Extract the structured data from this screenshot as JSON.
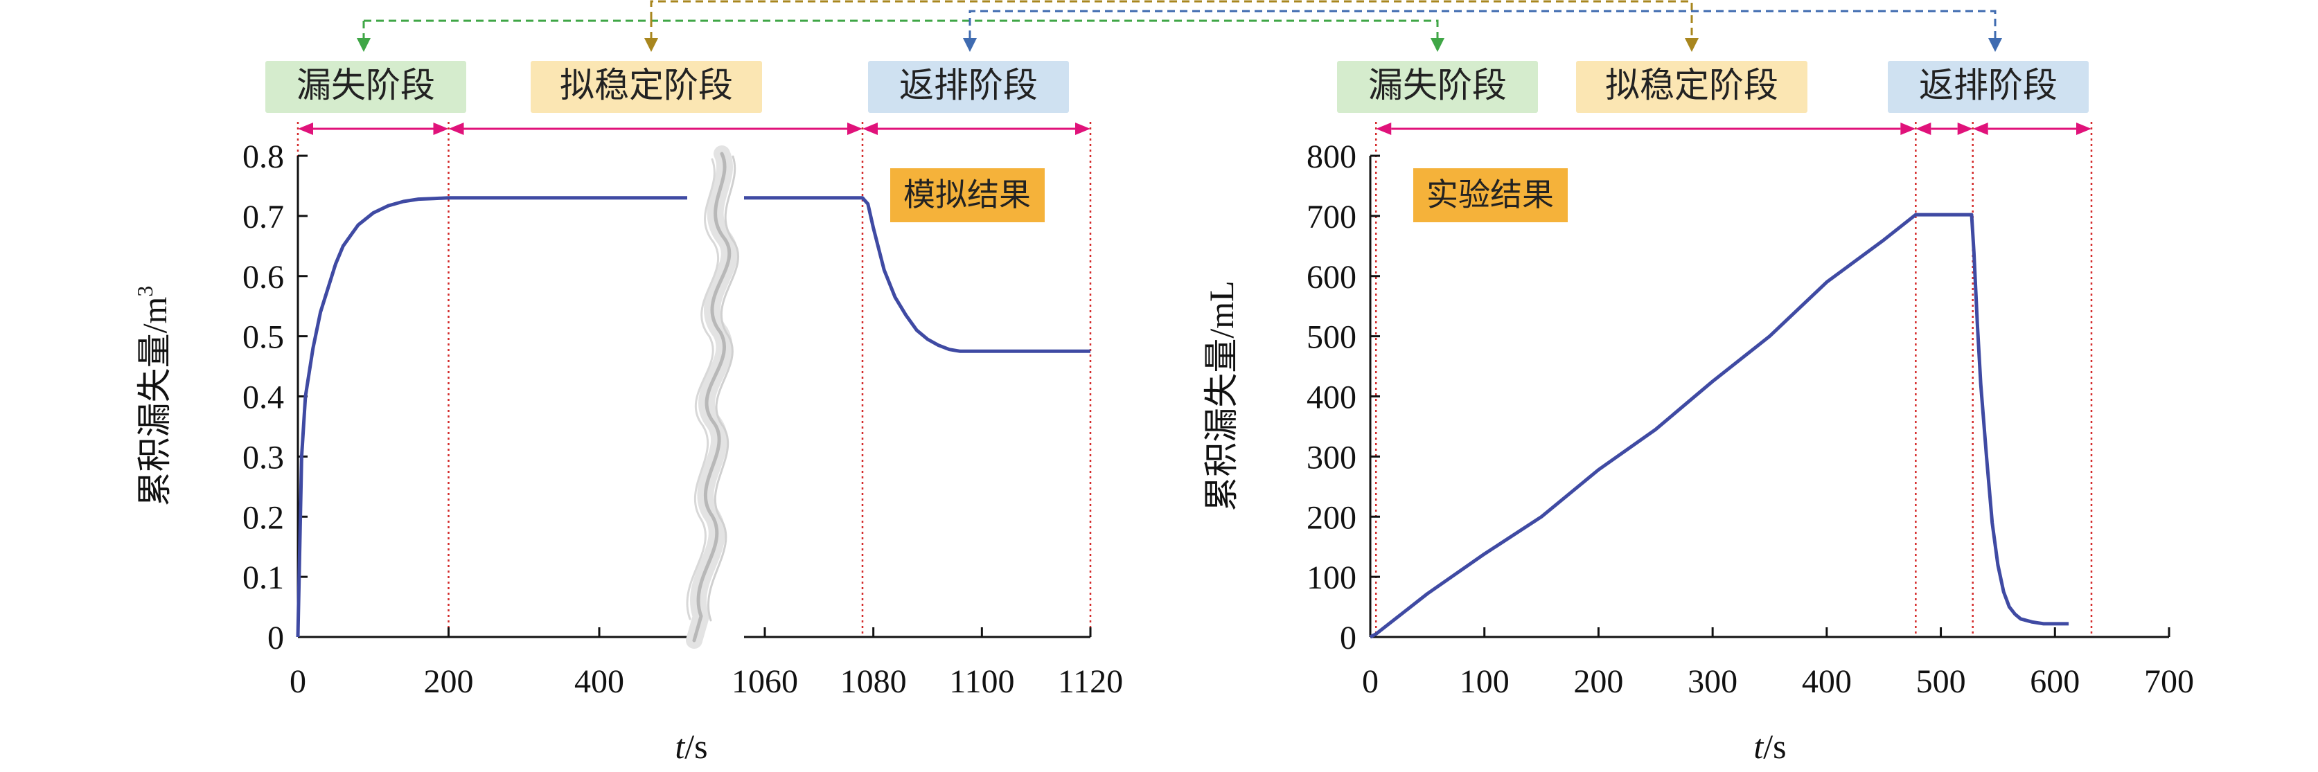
{
  "colors": {
    "curve": "#3f4aa3",
    "axis": "#111111",
    "stage_arrow": "#e0127a",
    "divider": "#d42a2a",
    "stage_loss": "#d5eccd",
    "stage_quasi": "#fbe6b3",
    "stage_flowback": "#cfe1f1",
    "result_label": "#f5b23a",
    "connector_green": "#3fa646",
    "connector_gold": "#a8861e",
    "connector_blue": "#3f6bb0"
  },
  "stages": {
    "loss": "漏失阶段",
    "quasi_stable": "拟稳定阶段",
    "flowback": "返排阶段"
  },
  "chart_data": [
    {
      "type": "line",
      "title": "",
      "result_label": "模拟结果",
      "xlabel_italic": "t",
      "xlabel_unit": "/s",
      "ylabel_text": "累积漏失量/m",
      "ylabel_sup": "3",
      "ylim": [
        0,
        0.8
      ],
      "y_ticks": [
        "0",
        "0.1",
        "0.2",
        "0.3",
        "0.4",
        "0.5",
        "0.6",
        "0.7",
        "0.8"
      ],
      "x_axis_break": true,
      "x_ticks": [
        "0",
        "200",
        "400",
        "1060",
        "1080",
        "1100",
        "1120"
      ],
      "stage_boundaries": [
        "0",
        "200",
        "1078",
        "1120"
      ],
      "series": [
        {
          "segment": "before_break",
          "x": [
            0,
            5,
            10,
            20,
            30,
            40,
            50,
            60,
            80,
            100,
            120,
            140,
            160,
            180,
            200,
            250,
            300,
            350,
            400,
            450,
            500,
            530
          ],
          "values": [
            0,
            0.3,
            0.4,
            0.48,
            0.54,
            0.58,
            0.62,
            0.65,
            0.685,
            0.705,
            0.717,
            0.724,
            0.728,
            0.729,
            0.73,
            0.73,
            0.73,
            0.73,
            0.73,
            0.73,
            0.73,
            0.73
          ]
        },
        {
          "segment": "after_break",
          "x": [
            1050,
            1060,
            1070,
            1078,
            1079,
            1080,
            1082,
            1084,
            1086,
            1088,
            1090,
            1092,
            1094,
            1096,
            1100,
            1110,
            1120
          ],
          "values": [
            0.73,
            0.73,
            0.73,
            0.73,
            0.72,
            0.68,
            0.61,
            0.565,
            0.535,
            0.51,
            0.495,
            0.485,
            0.478,
            0.475,
            0.475,
            0.475,
            0.475
          ]
        }
      ]
    },
    {
      "type": "line",
      "title": "",
      "result_label": "实验结果",
      "xlabel_italic": "t",
      "xlabel_unit": "/s",
      "ylabel_text": "累积漏失量/mL",
      "xlim": [
        0,
        700
      ],
      "ylim": [
        0,
        800
      ],
      "y_ticks": [
        "0",
        "100",
        "200",
        "300",
        "400",
        "500",
        "600",
        "700",
        "800"
      ],
      "x_ticks": [
        "0",
        "100",
        "200",
        "300",
        "400",
        "500",
        "600",
        "700"
      ],
      "stage_boundaries": [
        5,
        478,
        528,
        632
      ],
      "series": [
        {
          "x": [
            0,
            5,
            50,
            100,
            150,
            200,
            250,
            300,
            350,
            400,
            450,
            478,
            500,
            527,
            529,
            532,
            535,
            540,
            545,
            550,
            555,
            560,
            565,
            570,
            580,
            590,
            600,
            612
          ],
          "values": [
            0,
            5,
            72,
            138,
            200,
            278,
            345,
            425,
            500,
            590,
            660,
            702,
            702,
            702,
            640,
            520,
            420,
            300,
            190,
            120,
            75,
            50,
            38,
            30,
            25,
            22,
            22,
            22
          ]
        }
      ]
    }
  ]
}
